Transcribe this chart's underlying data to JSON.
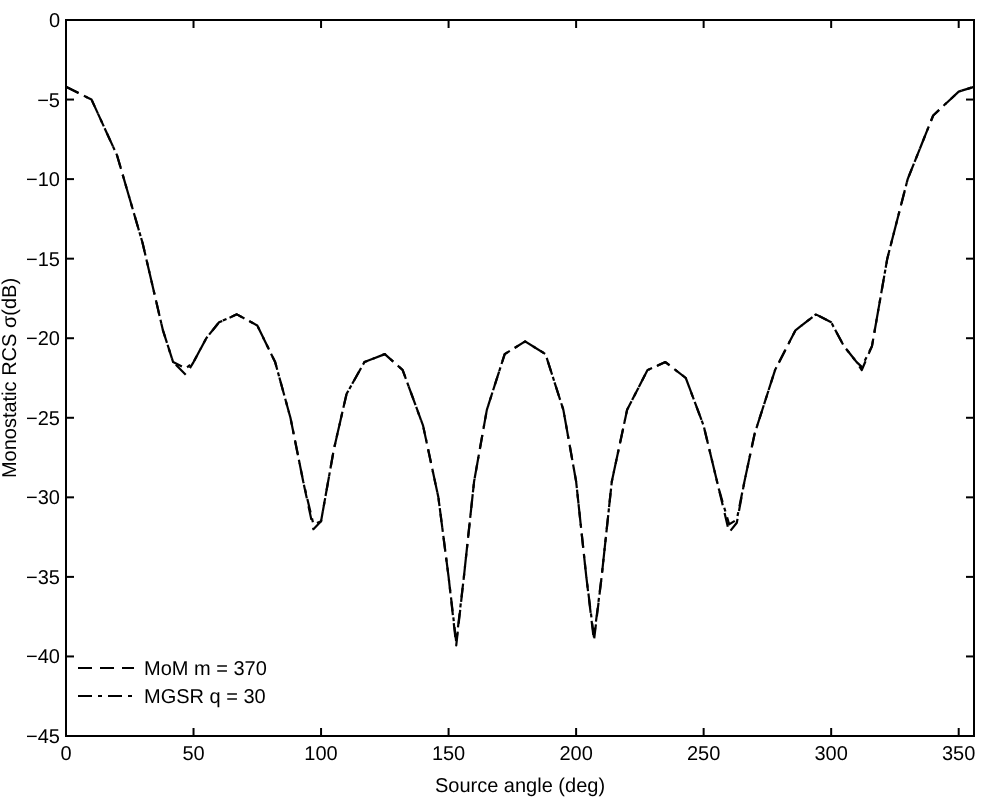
{
  "chart_data": {
    "type": "line",
    "xlabel": "Source angle (deg)",
    "ylabel": "Monostatic RCS σ(dB)",
    "xlim": [
      0,
      356
    ],
    "xticks": [
      0,
      50,
      100,
      150,
      200,
      250,
      300,
      350
    ],
    "ylim": [
      -45,
      0
    ],
    "yticks": [
      -45,
      -40,
      -35,
      -30,
      -25,
      -20,
      -15,
      -10,
      -5,
      0
    ],
    "grid": false,
    "legend": "bottom left",
    "line_style": "dashed",
    "marker": "none",
    "x": [
      0,
      10,
      20,
      30,
      38,
      42,
      47,
      50,
      55,
      60,
      67,
      75,
      82,
      88,
      93,
      97,
      100,
      105,
      110,
      117,
      125,
      132,
      140,
      146,
      150,
      153,
      156,
      160,
      165,
      172,
      180,
      188,
      195,
      200,
      204,
      207,
      210,
      214,
      220,
      228,
      235,
      243,
      250,
      256,
      260,
      263,
      266,
      270,
      278,
      286,
      294,
      300,
      305,
      310,
      312,
      316,
      322,
      330,
      340,
      350,
      356
    ],
    "series": [
      {
        "name": "MoM m = 370",
        "color": "#000000",
        "values": [
          -4.2,
          -5,
          -8.5,
          -14,
          -19.5,
          -21.5,
          -22.3,
          -21.5,
          -20,
          -19,
          -18.5,
          -19.2,
          -21.5,
          -25,
          -29,
          -32,
          -31.5,
          -27,
          -23.5,
          -21.5,
          -21,
          -22,
          -25.5,
          -30,
          -35,
          -39.3,
          -35,
          -29,
          -24.5,
          -21,
          -20.2,
          -21,
          -24.5,
          -29,
          -35,
          -39,
          -35,
          -29,
          -24.5,
          -22,
          -21.5,
          -22.5,
          -25.5,
          -29.5,
          -32.2,
          -31.6,
          -29,
          -26,
          -22,
          -19.5,
          -18.5,
          -19,
          -20.5,
          -21.5,
          -22,
          -20.5,
          -15,
          -10,
          -6,
          -4.5,
          -4.2
        ]
      },
      {
        "name": "MGSR q = 30",
        "color": "#000000",
        "values": [
          -4.2,
          -5,
          -8.5,
          -14,
          -19.5,
          -21.5,
          -21.9,
          -21.5,
          -20,
          -19,
          -18.5,
          -19.2,
          -21.5,
          -25,
          -29,
          -31.7,
          -31.5,
          -27,
          -23.5,
          -21.5,
          -21,
          -22,
          -25.5,
          -30,
          -35,
          -39.1,
          -35,
          -29,
          -24.5,
          -21,
          -20.2,
          -21,
          -24.5,
          -29,
          -35,
          -38.8,
          -35,
          -29,
          -24.5,
          -22,
          -21.5,
          -22.5,
          -25.5,
          -29.5,
          -31.7,
          -31.4,
          -29,
          -26,
          -22,
          -19.5,
          -18.5,
          -19,
          -20.5,
          -21.5,
          -21.8,
          -20.5,
          -15,
          -10,
          -6,
          -4.5,
          -4.2
        ]
      }
    ]
  }
}
